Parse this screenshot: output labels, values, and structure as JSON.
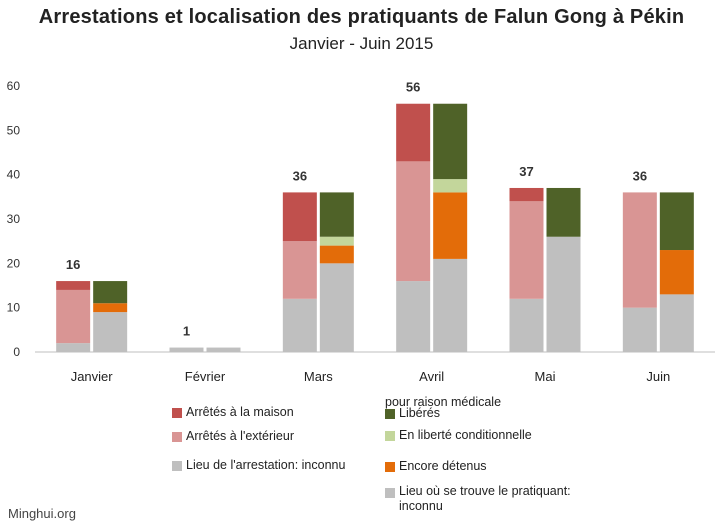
{
  "chart_data": {
    "type": "bar",
    "title": "Arrestations et localisation des pratiquants de Falun Gong à Pékin",
    "subtitle": "Janvier - Juin 2015",
    "categories": [
      "Janvier",
      "Février",
      "Mars",
      "Avril",
      "Mai",
      "Juin"
    ],
    "totals": [
      16,
      1,
      36,
      56,
      37,
      36
    ],
    "ylim": [
      0,
      60
    ],
    "yticks": [
      0,
      10,
      20,
      30,
      40,
      50,
      60
    ],
    "grid": false,
    "legend_position": "bottom",
    "stacks": [
      {
        "stack": "arrest_location",
        "series": [
          {
            "name": "Lieu de l'arrestation: inconnu",
            "color": "#bfbfbf",
            "values": [
              2,
              1,
              12,
              16,
              12,
              10
            ]
          },
          {
            "name": "Arrêtés à l'extérieur",
            "color": "#d99594",
            "values": [
              12,
              0,
              13,
              27,
              22,
              26
            ]
          },
          {
            "name": "Arrêtés à la maison",
            "color": "#c0504d",
            "values": [
              2,
              0,
              11,
              13,
              3,
              0
            ]
          }
        ]
      },
      {
        "stack": "current_status",
        "series": [
          {
            "name": "Lieu où se trouve le pratiquant: inconnu",
            "color": "#bfbfbf",
            "values": [
              9,
              1,
              20,
              21,
              26,
              13
            ]
          },
          {
            "name": "Encore détenus",
            "color": "#e36c09",
            "values": [
              2,
              0,
              4,
              15,
              0,
              10
            ]
          },
          {
            "name": "En liberté conditionnelle",
            "color": "#c3d69b",
            "values": [
              0,
              0,
              2,
              3,
              0,
              0
            ]
          },
          {
            "name": "Libérés pour raison médicale",
            "color": "#4f6228",
            "values": [
              0,
              0,
              0,
              0,
              0,
              0
            ]
          },
          {
            "name": "Libérés",
            "color": "#4f6228",
            "values": [
              5,
              0,
              10,
              17,
              11,
              13
            ]
          }
        ]
      }
    ]
  },
  "legend_left": [
    {
      "label": "Arrêtés à la maison",
      "color": "#c0504d"
    },
    {
      "label": "Arrêtés à l'extérieur",
      "color": "#d99594"
    },
    {
      "label": "Lieu de l'arrestation: inconnu",
      "color": "#bfbfbf"
    }
  ],
  "legend_right": {
    "medical_label": "pour raison médicale",
    "items": [
      {
        "label": "Libérés",
        "color": "#4f6228"
      },
      {
        "label": "En liberté conditionnelle",
        "color": "#c3d69b"
      },
      {
        "label": "Encore détenus",
        "color": "#e36c09"
      },
      {
        "label": "Lieu où se trouve le pratiquant: inconnu",
        "color": "#bfbfbf"
      }
    ]
  },
  "source": "Minghui.org"
}
